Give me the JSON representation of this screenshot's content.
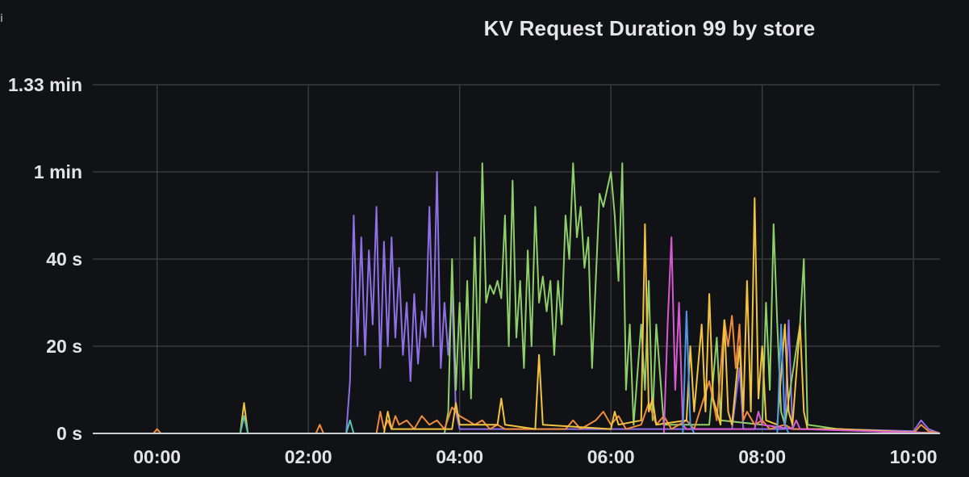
{
  "panel": {
    "title": "KV Request Duration 99 by store",
    "info_glyph": "i"
  },
  "colors": {
    "background": "#111215",
    "grid": "#3a3b3e",
    "purple": "#8f70e6",
    "green": "#8fcf6a",
    "orange": "#f08a3c",
    "yellow": "#f2c340",
    "magenta": "#d85ad3",
    "blue": "#4f95e8",
    "teal": "#4fc2b0"
  },
  "chart_data": {
    "type": "line",
    "title": "KV Request Duration 99 by store",
    "xlabel": "",
    "ylabel": "",
    "x_unit": "hours",
    "y_unit": "seconds",
    "xlim": [
      -0.85,
      10.35
    ],
    "ylim": [
      0,
      80
    ],
    "y_ticks": [
      {
        "value": 0,
        "label": "0 s"
      },
      {
        "value": 20,
        "label": "20 s"
      },
      {
        "value": 40,
        "label": "40 s"
      },
      {
        "value": 60,
        "label": "1 min"
      },
      {
        "value": 80,
        "label": "1.33 min"
      }
    ],
    "x_ticks": [
      {
        "value": 0,
        "label": "00:00"
      },
      {
        "value": 2,
        "label": "02:00"
      },
      {
        "value": 4,
        "label": "04:00"
      },
      {
        "value": 6,
        "label": "06:00"
      },
      {
        "value": 8,
        "label": "08:00"
      },
      {
        "value": 10,
        "label": "10:00"
      }
    ],
    "grid": true,
    "legend": "none",
    "series": [
      {
        "color": "#8f70e6",
        "points": [
          [
            -0.85,
            0
          ],
          [
            2.5,
            0
          ],
          [
            2.55,
            12
          ],
          [
            2.6,
            50
          ],
          [
            2.65,
            20
          ],
          [
            2.7,
            45
          ],
          [
            2.75,
            18
          ],
          [
            2.8,
            42
          ],
          [
            2.85,
            25
          ],
          [
            2.9,
            52
          ],
          [
            2.95,
            15
          ],
          [
            3.0,
            44
          ],
          [
            3.05,
            20
          ],
          [
            3.1,
            45
          ],
          [
            3.15,
            22
          ],
          [
            3.2,
            38
          ],
          [
            3.25,
            18
          ],
          [
            3.3,
            30
          ],
          [
            3.35,
            12
          ],
          [
            3.4,
            32
          ],
          [
            3.45,
            16
          ],
          [
            3.5,
            28
          ],
          [
            3.55,
            22
          ],
          [
            3.6,
            52
          ],
          [
            3.65,
            20
          ],
          [
            3.7,
            60
          ],
          [
            3.75,
            15
          ],
          [
            3.8,
            30
          ],
          [
            3.85,
            18
          ],
          [
            3.9,
            32
          ],
          [
            3.95,
            5
          ],
          [
            4.0,
            1
          ],
          [
            7.6,
            1
          ],
          [
            7.7,
            15
          ],
          [
            7.75,
            1
          ],
          [
            8.3,
            1
          ],
          [
            8.35,
            26
          ],
          [
            8.4,
            1
          ],
          [
            9.0,
            1
          ],
          [
            10.0,
            0.5
          ],
          [
            10.1,
            3
          ],
          [
            10.2,
            1
          ],
          [
            10.35,
            0
          ]
        ]
      },
      {
        "color": "#8fcf6a",
        "points": [
          [
            -0.85,
            0
          ],
          [
            3.8,
            0
          ],
          [
            3.85,
            5
          ],
          [
            3.9,
            40
          ],
          [
            3.95,
            10
          ],
          [
            4.0,
            30
          ],
          [
            4.05,
            10
          ],
          [
            4.1,
            35
          ],
          [
            4.15,
            8
          ],
          [
            4.2,
            45
          ],
          [
            4.25,
            15
          ],
          [
            4.3,
            62
          ],
          [
            4.35,
            30
          ],
          [
            4.4,
            34
          ],
          [
            4.45,
            32
          ],
          [
            4.5,
            35
          ],
          [
            4.55,
            31
          ],
          [
            4.6,
            50
          ],
          [
            4.65,
            20
          ],
          [
            4.7,
            58
          ],
          [
            4.75,
            22
          ],
          [
            4.8,
            35
          ],
          [
            4.85,
            15
          ],
          [
            4.9,
            42
          ],
          [
            4.95,
            20
          ],
          [
            5.0,
            52
          ],
          [
            5.05,
            30
          ],
          [
            5.1,
            36
          ],
          [
            5.15,
            28
          ],
          [
            5.2,
            35
          ],
          [
            5.25,
            18
          ],
          [
            5.3,
            35
          ],
          [
            5.35,
            25
          ],
          [
            5.4,
            50
          ],
          [
            5.45,
            40
          ],
          [
            5.5,
            62
          ],
          [
            5.55,
            45
          ],
          [
            5.6,
            52
          ],
          [
            5.65,
            38
          ],
          [
            5.7,
            45
          ],
          [
            5.75,
            15
          ],
          [
            5.8,
            35
          ],
          [
            5.85,
            55
          ],
          [
            5.9,
            52
          ],
          [
            5.95,
            56
          ],
          [
            6.0,
            60
          ],
          [
            6.05,
            50
          ],
          [
            6.1,
            35
          ],
          [
            6.15,
            62
          ],
          [
            6.2,
            10
          ],
          [
            6.25,
            25
          ],
          [
            6.3,
            2
          ],
          [
            6.4,
            25
          ],
          [
            6.45,
            10
          ],
          [
            6.5,
            35
          ],
          [
            6.55,
            3
          ],
          [
            6.6,
            25
          ],
          [
            6.7,
            2
          ],
          [
            7.3,
            2
          ],
          [
            7.4,
            22
          ],
          [
            7.45,
            3
          ],
          [
            8.0,
            2
          ],
          [
            8.05,
            30
          ],
          [
            8.1,
            10
          ],
          [
            8.15,
            48
          ],
          [
            8.2,
            25
          ],
          [
            8.25,
            5
          ],
          [
            8.3,
            2
          ],
          [
            8.5,
            25
          ],
          [
            8.55,
            40
          ],
          [
            8.6,
            2
          ],
          [
            9.0,
            1
          ],
          [
            10.35,
            0
          ]
        ]
      },
      {
        "color": "#f08a3c",
        "points": [
          [
            -0.85,
            0
          ],
          [
            -0.05,
            0
          ],
          [
            0.0,
            1
          ],
          [
            0.05,
            0
          ],
          [
            2.1,
            0
          ],
          [
            2.15,
            2
          ],
          [
            2.2,
            0
          ],
          [
            2.9,
            0
          ],
          [
            2.95,
            5
          ],
          [
            3.0,
            1
          ],
          [
            3.05,
            3
          ],
          [
            3.1,
            1
          ],
          [
            3.15,
            4
          ],
          [
            3.2,
            2
          ],
          [
            3.3,
            3
          ],
          [
            3.4,
            1
          ],
          [
            3.5,
            4
          ],
          [
            3.6,
            2
          ],
          [
            3.7,
            3
          ],
          [
            3.8,
            1
          ],
          [
            3.9,
            6
          ],
          [
            4.0,
            4
          ],
          [
            4.1,
            3
          ],
          [
            4.2,
            2
          ],
          [
            4.3,
            3
          ],
          [
            4.4,
            1
          ],
          [
            4.5,
            2
          ],
          [
            4.6,
            1
          ],
          [
            5.4,
            1
          ],
          [
            5.5,
            3
          ],
          [
            5.6,
            1
          ],
          [
            5.8,
            3
          ],
          [
            5.9,
            5
          ],
          [
            6.0,
            2
          ],
          [
            6.1,
            4
          ],
          [
            6.2,
            1
          ],
          [
            6.4,
            2
          ],
          [
            6.5,
            7
          ],
          [
            6.6,
            2
          ],
          [
            6.7,
            4
          ],
          [
            6.8,
            1
          ],
          [
            7.0,
            3
          ],
          [
            7.1,
            1
          ],
          [
            7.3,
            12
          ],
          [
            7.4,
            3
          ],
          [
            7.5,
            26
          ],
          [
            7.55,
            20
          ],
          [
            7.6,
            27
          ],
          [
            7.65,
            15
          ],
          [
            7.7,
            25
          ],
          [
            7.75,
            3
          ],
          [
            7.8,
            5
          ],
          [
            7.9,
            2
          ],
          [
            8.0,
            3
          ],
          [
            8.1,
            1
          ],
          [
            8.3,
            2
          ],
          [
            8.4,
            1
          ],
          [
            9.0,
            1
          ],
          [
            10.0,
            0
          ],
          [
            10.1,
            2
          ],
          [
            10.2,
            0.5
          ],
          [
            10.35,
            0
          ]
        ]
      },
      {
        "color": "#f2c340",
        "points": [
          [
            -0.85,
            0
          ],
          [
            1.1,
            0
          ],
          [
            1.15,
            7
          ],
          [
            1.2,
            0
          ],
          [
            3.0,
            0
          ],
          [
            3.05,
            5
          ],
          [
            3.1,
            1
          ],
          [
            3.9,
            1
          ],
          [
            3.95,
            7
          ],
          [
            4.0,
            2
          ],
          [
            4.5,
            2
          ],
          [
            4.55,
            8
          ],
          [
            4.6,
            2
          ],
          [
            5.0,
            1
          ],
          [
            5.05,
            18
          ],
          [
            5.1,
            2
          ],
          [
            6.0,
            1
          ],
          [
            6.05,
            5
          ],
          [
            6.1,
            2
          ],
          [
            6.4,
            3
          ],
          [
            6.45,
            48
          ],
          [
            6.5,
            5
          ],
          [
            6.55,
            8
          ],
          [
            6.6,
            2
          ],
          [
            7.0,
            3
          ],
          [
            7.05,
            20
          ],
          [
            7.1,
            5
          ],
          [
            7.2,
            25
          ],
          [
            7.25,
            5
          ],
          [
            7.3,
            32
          ],
          [
            7.35,
            8
          ],
          [
            7.45,
            2
          ],
          [
            7.5,
            26
          ],
          [
            7.55,
            5
          ],
          [
            7.6,
            2
          ],
          [
            7.7,
            20
          ],
          [
            7.75,
            5
          ],
          [
            7.8,
            35
          ],
          [
            7.85,
            5
          ],
          [
            7.9,
            54
          ],
          [
            7.95,
            8
          ],
          [
            8.0,
            20
          ],
          [
            8.05,
            3
          ],
          [
            8.2,
            2
          ],
          [
            8.3,
            25
          ],
          [
            8.35,
            5
          ],
          [
            8.4,
            2
          ],
          [
            8.5,
            25
          ],
          [
            8.55,
            5
          ],
          [
            8.6,
            1
          ],
          [
            9.0,
            1
          ],
          [
            10.35,
            0
          ]
        ]
      },
      {
        "color": "#d85ad3",
        "points": [
          [
            -0.85,
            0
          ],
          [
            6.7,
            0
          ],
          [
            6.75,
            25
          ],
          [
            6.8,
            45
          ],
          [
            6.85,
            10
          ],
          [
            6.9,
            30
          ],
          [
            6.95,
            2
          ],
          [
            7.0,
            1
          ],
          [
            7.9,
            1
          ],
          [
            7.95,
            5
          ],
          [
            8.0,
            2
          ],
          [
            8.4,
            1
          ],
          [
            8.45,
            3
          ],
          [
            8.5,
            1
          ],
          [
            10.35,
            0
          ]
        ]
      },
      {
        "color": "#4f95e8",
        "points": [
          [
            -0.85,
            0
          ],
          [
            6.95,
            0
          ],
          [
            7.0,
            28
          ],
          [
            7.05,
            2
          ],
          [
            7.1,
            0
          ],
          [
            8.2,
            0
          ],
          [
            8.25,
            25
          ],
          [
            8.3,
            2
          ],
          [
            8.35,
            0
          ],
          [
            10.35,
            0
          ]
        ]
      },
      {
        "color": "#4fc2b0",
        "points": [
          [
            -0.85,
            0
          ],
          [
            1.1,
            0
          ],
          [
            1.15,
            4
          ],
          [
            1.2,
            0
          ],
          [
            2.5,
            0
          ],
          [
            2.55,
            3
          ],
          [
            2.6,
            0
          ],
          [
            10.35,
            0
          ]
        ]
      }
    ]
  }
}
